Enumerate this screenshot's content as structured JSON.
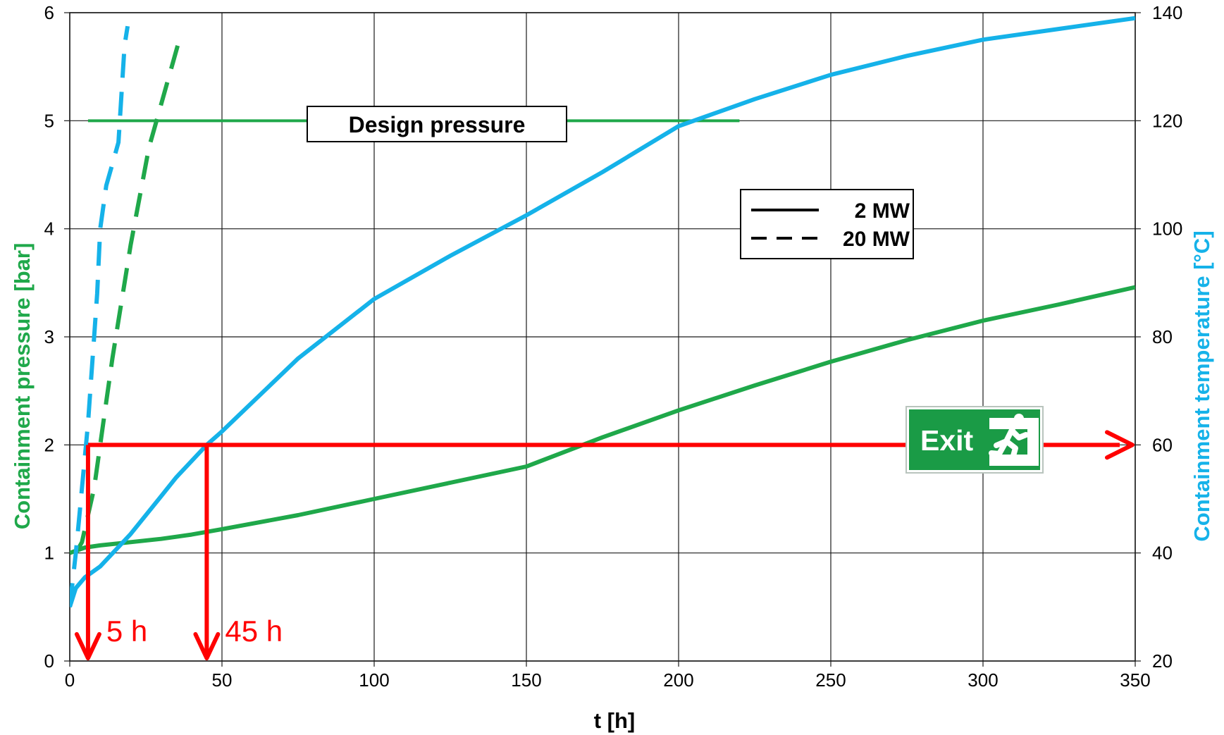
{
  "colors": {
    "pressure": "#1fa84a",
    "temperature": "#15b2e9",
    "annotation": "#ff0000",
    "grid": "#1a1a1a",
    "exit_sign": "#1a9b46"
  },
  "chart_data": {
    "type": "line",
    "xlabel": "t [h]",
    "ylabel_left": "Containment pressure [bar]",
    "ylabel_right": "Containment temperature [°C]",
    "xlim": [
      0,
      350
    ],
    "ylim_left": [
      0,
      6
    ],
    "ylim_right": [
      20,
      140
    ],
    "x_ticks": [
      "0",
      "50",
      "100",
      "150",
      "200",
      "250",
      "300",
      "350"
    ],
    "y_ticks_left": [
      "0",
      "1",
      "2",
      "3",
      "4",
      "5",
      "6"
    ],
    "y_ticks_right": [
      "20",
      "40",
      "60",
      "80",
      "100",
      "120",
      "140"
    ],
    "grid": true,
    "legend": {
      "placement": "upper-middle-right",
      "entries": [
        {
          "label": "2 MW",
          "style": "solid"
        },
        {
          "label": "20 MW",
          "style": "dashed"
        }
      ]
    },
    "design_pressure": {
      "label": "Design pressure",
      "value": 5,
      "x_range": [
        6,
        220
      ]
    },
    "series": [
      {
        "quantity": "pressure",
        "case": "2 MW",
        "axis": "left",
        "style": "solid",
        "x": [
          0,
          5,
          10,
          20,
          30,
          40,
          50,
          75,
          100,
          125,
          150,
          175,
          200,
          225,
          250,
          275,
          300,
          325,
          350
        ],
        "y": [
          1.0,
          1.05,
          1.07,
          1.1,
          1.13,
          1.17,
          1.22,
          1.35,
          1.5,
          1.65,
          1.8,
          2.07,
          2.32,
          2.55,
          2.77,
          2.97,
          3.15,
          3.3,
          3.46
        ]
      },
      {
        "quantity": "temperature",
        "case": "2 MW",
        "axis": "right",
        "style": "solid",
        "x": [
          0,
          2,
          5,
          10,
          15,
          20,
          25,
          30,
          35,
          40,
          45,
          50,
          75,
          100,
          125,
          150,
          175,
          200,
          225,
          250,
          275,
          300,
          325,
          350
        ],
        "y": [
          30,
          33.5,
          35.5,
          37.5,
          40.5,
          43.5,
          47,
          50.5,
          54,
          57,
          60,
          62.5,
          76,
          87,
          95,
          102.5,
          110.5,
          119,
          124,
          128.5,
          132,
          135,
          137,
          139
        ]
      },
      {
        "quantity": "pressure",
        "case": "20 MW",
        "axis": "left",
        "style": "dashed",
        "x": [
          2,
          4,
          6,
          8,
          10,
          12,
          14,
          16,
          18,
          20,
          22,
          24,
          26,
          28,
          30,
          32,
          34,
          36
        ],
        "y": [
          1.0,
          1.1,
          1.35,
          1.6,
          2.0,
          2.4,
          2.8,
          3.15,
          3.5,
          3.85,
          4.15,
          4.45,
          4.75,
          4.95,
          5.15,
          5.35,
          5.55,
          5.75
        ]
      },
      {
        "quantity": "temperature",
        "case": "20 MW",
        "axis": "right",
        "style": "dashed",
        "x": [
          0,
          1,
          2,
          3,
          4,
          5,
          6,
          7,
          8,
          9,
          10,
          12,
          14,
          16,
          18,
          19
        ],
        "y": [
          30,
          35,
          40,
          46,
          52,
          58,
          64,
          72,
          80,
          88,
          100,
          108,
          112,
          116,
          134,
          137.5
        ]
      }
    ],
    "annotations": {
      "threshold": {
        "pressure": 2,
        "temperature": 60
      },
      "arrows": [
        {
          "label": "5 h",
          "t": 6
        },
        {
          "label": "45 h",
          "t": 45
        }
      ],
      "exit_sign": "Exit"
    }
  }
}
